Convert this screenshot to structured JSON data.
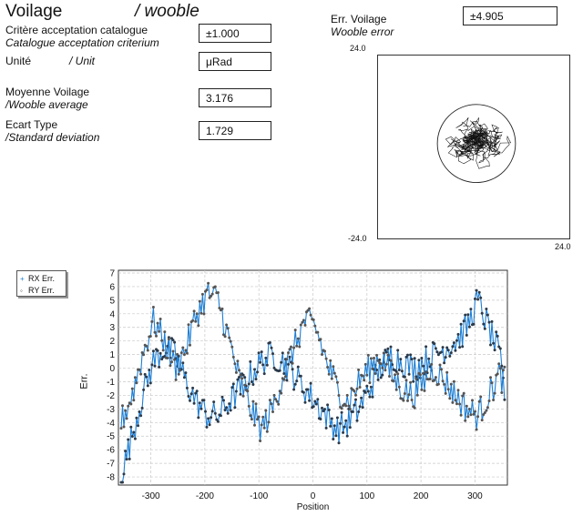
{
  "header": {
    "title_fr": "Voilage",
    "title_en": "/ wooble"
  },
  "fields": [
    {
      "label_fr": "Critère acceptation catalogue",
      "label_en": "Catalogue acceptation criterium",
      "value": "±1.000"
    },
    {
      "label_fr": "Unité",
      "label_en": "/ Unit",
      "value": "μRad"
    },
    {
      "label_fr": "Moyenne Voilage",
      "label_en": "/Wooble average",
      "value": "3.176"
    },
    {
      "label_fr": "Ecart Type",
      "label_en": "/Standard deviation",
      "value": "1.729"
    }
  ],
  "error_panel": {
    "label_fr": "Err. Voilage",
    "label_en": "Wooble error",
    "value": "±4.905"
  },
  "colors": {
    "rx": "#1f7fd4",
    "ry": "#2a2a2a",
    "grid": "#c8c8c8",
    "frame": "#333333"
  },
  "chart_data": [
    {
      "type": "scatter",
      "description": "Wooble error polar plot (RX vs RY trace inside tolerance circle)",
      "top_label": "24.0",
      "bottom_label": "-24.0",
      "right_label": "24.0",
      "xlim": [
        -24,
        24
      ],
      "ylim": [
        -24,
        24
      ],
      "circle_radius": 9.8,
      "trace_center": [
        0.5,
        1.5
      ],
      "trace_spread": 3.2
    },
    {
      "type": "line",
      "xlabel": "Position",
      "ylabel": "Err.",
      "xlim": [
        -360,
        360
      ],
      "ylim": [
        -8.6,
        7.2
      ],
      "x_ticks": [
        -300,
        -200,
        -100,
        0,
        100,
        200,
        300
      ],
      "y_ticks": [
        -8,
        -7,
        -6,
        -5,
        -4,
        -3,
        -2,
        -1,
        0,
        1,
        2,
        3,
        4,
        5,
        6,
        7
      ],
      "grid": true,
      "legend": {
        "position": "top-left",
        "items": [
          "RX Err.",
          "RY Err."
        ]
      },
      "series": [
        {
          "name": "RX Err.",
          "x": [
            -355,
            -335,
            -315,
            -295,
            -275,
            -255,
            -235,
            -215,
            -195,
            -175,
            -155,
            -135,
            -115,
            -95,
            -75,
            -55,
            -35,
            -15,
            5,
            25,
            45,
            65,
            85,
            105,
            125,
            145,
            165,
            185,
            205,
            225,
            245,
            265,
            285,
            305,
            325,
            345,
            355
          ],
          "y": [
            -8,
            -5,
            -2,
            0.5,
            1.5,
            1,
            -1,
            -2.5,
            -3.5,
            -3.5,
            -2.5,
            -1.5,
            -0.5,
            0.5,
            1,
            0.5,
            -0.5,
            -1.5,
            -2.5,
            -3.5,
            -4.5,
            -4,
            -3,
            -1.5,
            0,
            1,
            0.5,
            0,
            0.5,
            1,
            1.5,
            2,
            3,
            5,
            3,
            1,
            -2
          ]
        },
        {
          "name": "RY Err.",
          "x": [
            -355,
            -335,
            -315,
            -295,
            -275,
            -255,
            -235,
            -215,
            -195,
            -175,
            -155,
            -135,
            -115,
            -95,
            -75,
            -55,
            -35,
            -15,
            5,
            25,
            45,
            65,
            85,
            105,
            125,
            145,
            165,
            185,
            205,
            225,
            245,
            265,
            285,
            305,
            325,
            345,
            355
          ],
          "y": [
            -4,
            -2,
            1,
            3.5,
            2,
            0,
            1.5,
            4,
            5.5,
            5,
            2,
            -1,
            -3,
            -4.5,
            -3,
            -0.5,
            1.5,
            3.5,
            3,
            0.5,
            -1.5,
            -2.5,
            -1,
            0,
            1,
            -0.5,
            -1.5,
            -2,
            -1,
            0,
            -1,
            -2,
            -3,
            -3.5,
            -2,
            -0.5,
            -1
          ]
        }
      ]
    }
  ]
}
